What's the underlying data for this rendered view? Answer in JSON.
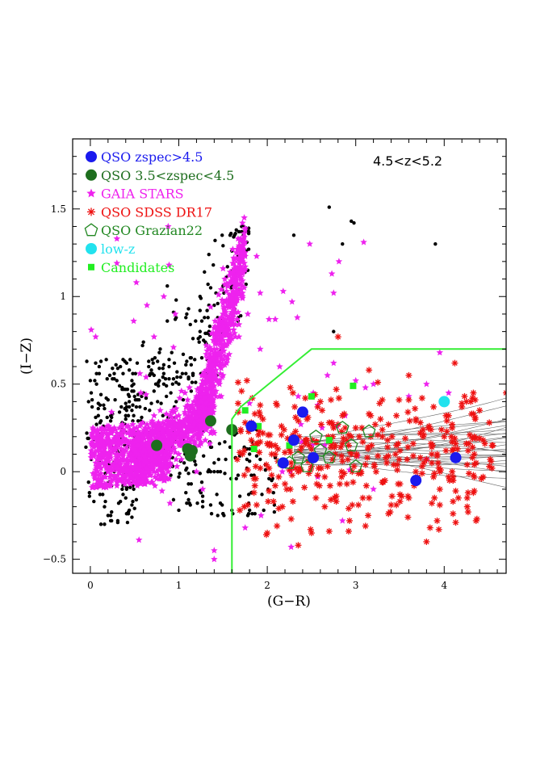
{
  "chart_data": {
    "type": "scatter",
    "xlabel": "(G−R)",
    "ylabel": "(I−Z)",
    "xlim": [
      -0.2,
      4.7
    ],
    "ylim": [
      -0.58,
      1.9
    ],
    "x_ticks": [
      0,
      1,
      2,
      3,
      4
    ],
    "y_ticks": [
      -0.5,
      0,
      0.5,
      1,
      1.5
    ],
    "x_tick_labels": [
      "0",
      "1",
      "2",
      "3",
      "4"
    ],
    "y_tick_labels": [
      "−0.5",
      "0",
      "0.5",
      "1",
      "1.5"
    ],
    "annotation": "4.5<z<5.2",
    "grid": false,
    "legend_position": "top-left",
    "selection_boundary": {
      "color": "#33ee33",
      "points": [
        [
          1.6,
          -0.58
        ],
        [
          1.6,
          0.3
        ],
        [
          1.7,
          0.37
        ],
        [
          2.5,
          0.7
        ],
        [
          4.7,
          0.7
        ]
      ]
    },
    "series": [
      {
        "name": "QSO zspec>4.5",
        "marker": "filled-circle",
        "color": "#1a1aee",
        "points": [
          [
            1.82,
            0.26
          ],
          [
            2.4,
            0.34
          ],
          [
            2.3,
            0.18
          ],
          [
            2.18,
            0.05
          ],
          [
            2.52,
            0.08
          ],
          [
            3.68,
            -0.05
          ],
          [
            4.13,
            0.08
          ]
        ]
      },
      {
        "name": "QSO 3.5<zspec<4.5",
        "marker": "filled-circle",
        "color": "#1e6e1e",
        "points": [
          [
            0.75,
            0.15
          ],
          [
            1.1,
            0.13
          ],
          [
            1.13,
            0.09
          ],
          [
            1.15,
            0.12
          ],
          [
            1.36,
            0.29
          ],
          [
            1.6,
            0.24
          ]
        ]
      },
      {
        "name": "GAIA STARS",
        "marker": "star",
        "color": "#ee22ee",
        "points": []
      },
      {
        "name": "QSO SDSS DR17",
        "marker": "asterisk",
        "color": "#ee1111",
        "points": []
      },
      {
        "name": "QSO Grazian22",
        "marker": "open-pentagon",
        "color": "#228822",
        "points": [
          [
            2.25,
            0.05
          ],
          [
            2.45,
            0.03
          ],
          [
            2.6,
            0.12
          ],
          [
            2.7,
            0.08
          ],
          [
            2.85,
            0.25
          ],
          [
            2.95,
            0.15
          ],
          [
            3.0,
            0.03
          ],
          [
            3.15,
            0.23
          ],
          [
            2.35,
            0.08
          ],
          [
            2.55,
            0.2
          ]
        ]
      },
      {
        "name": "low-z",
        "marker": "filled-circle",
        "color": "#22e2ee",
        "points": [
          [
            4.0,
            0.4
          ]
        ]
      },
      {
        "name": "Candidates",
        "marker": "filled-square",
        "color": "#22ee22",
        "points": [
          [
            1.75,
            0.35
          ],
          [
            2.5,
            0.43
          ],
          [
            1.9,
            0.26
          ],
          [
            2.25,
            0.15
          ],
          [
            2.15,
            0.05
          ],
          [
            2.97,
            0.49
          ],
          [
            1.85,
            0.13
          ],
          [
            2.7,
            0.18
          ]
        ]
      },
      {
        "name": "",
        "marker": "small-dot",
        "color": "#000000",
        "points": []
      }
    ]
  }
}
